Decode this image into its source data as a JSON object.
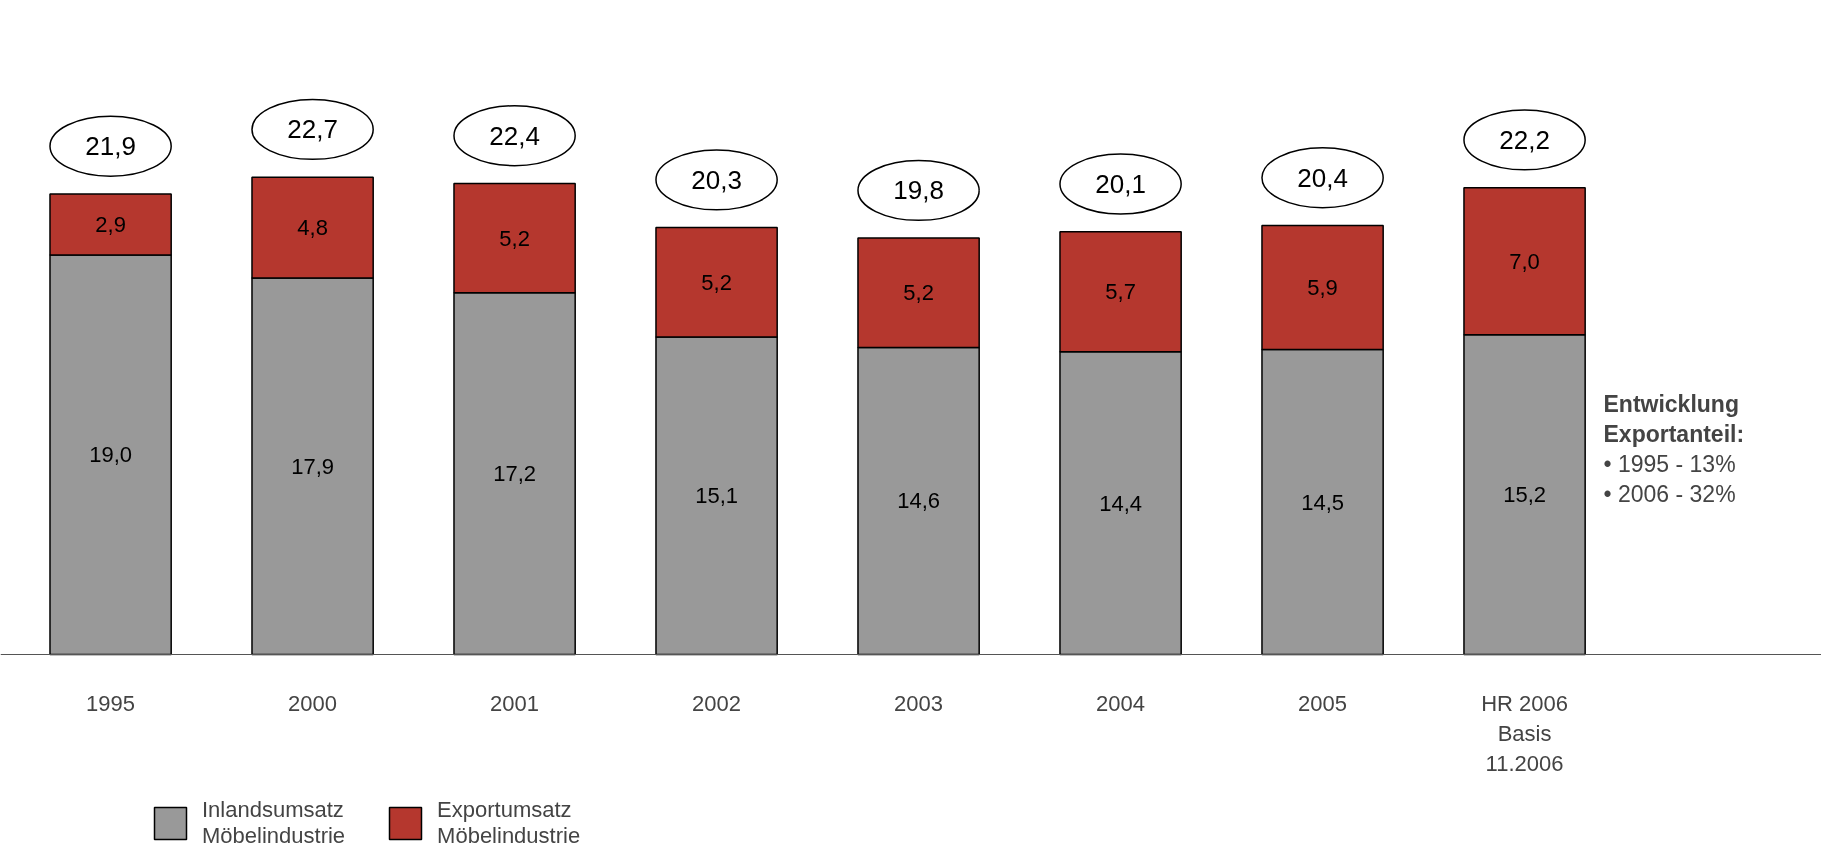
{
  "chart_data": {
    "type": "bar",
    "stacked": true,
    "categories": [
      "1995",
      "2000",
      "2001",
      "2002",
      "2003",
      "2004",
      "2005",
      "HR 2006\nBasis\n11.2006"
    ],
    "series": [
      {
        "name": "Inlandsumsatz\nMöbelindustrie",
        "color": "#999999",
        "values": [
          19.0,
          17.9,
          17.2,
          15.1,
          14.6,
          14.4,
          14.5,
          15.2
        ],
        "value_labels": [
          "19,0",
          "17,9",
          "17,2",
          "15,1",
          "14,6",
          "14,4",
          "14,5",
          "15,2"
        ]
      },
      {
        "name": "Exportumsatz\nMöbelindustrie",
        "color": "#b5372e",
        "values": [
          2.9,
          4.8,
          5.2,
          5.2,
          5.2,
          5.7,
          5.9,
          7.0
        ],
        "value_labels": [
          "2,9",
          "4,8",
          "5,2",
          "5,2",
          "5,2",
          "5,7",
          "5,9",
          "7,0"
        ]
      }
    ],
    "totals": [
      "21,9",
      "22,7",
      "22,4",
      "20,3",
      "19,8",
      "20,1",
      "20,4",
      "22,2"
    ],
    "annotations": [
      "Entwicklung Exportanteil:",
      "• 1995 - 13%",
      "• 2006 - 32%"
    ],
    "legend": "bottom left",
    "grid": false
  }
}
